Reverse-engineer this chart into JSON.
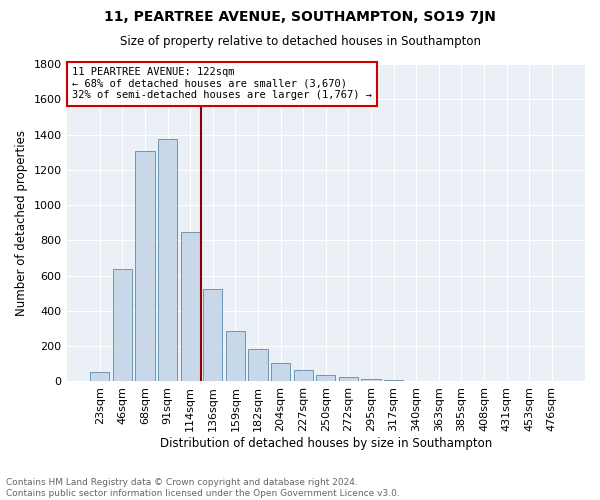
{
  "title": "11, PEARTREE AVENUE, SOUTHAMPTON, SO19 7JN",
  "subtitle": "Size of property relative to detached houses in Southampton",
  "xlabel": "Distribution of detached houses by size in Southampton",
  "ylabel": "Number of detached properties",
  "footer_line1": "Contains HM Land Registry data © Crown copyright and database right 2024.",
  "footer_line2": "Contains public sector information licensed under the Open Government Licence v3.0.",
  "annotation_line1": "11 PEARTREE AVENUE: 122sqm",
  "annotation_line2": "← 68% of detached houses are smaller (3,670)",
  "annotation_line3": "32% of semi-detached houses are larger (1,767) →",
  "categories": [
    "23sqm",
    "46sqm",
    "68sqm",
    "91sqm",
    "114sqm",
    "136sqm",
    "159sqm",
    "182sqm",
    "204sqm",
    "227sqm",
    "250sqm",
    "272sqm",
    "295sqm",
    "317sqm",
    "340sqm",
    "363sqm",
    "385sqm",
    "408sqm",
    "431sqm",
    "453sqm",
    "476sqm"
  ],
  "values": [
    55,
    635,
    1305,
    1375,
    845,
    525,
    285,
    185,
    105,
    65,
    35,
    25,
    15,
    10,
    5,
    3,
    2,
    1,
    1,
    0,
    0
  ],
  "bar_color": "#c8d8e8",
  "bar_edge_color": "#5a8ab0",
  "vline_x": 4.5,
  "vline_color": "#8b0000",
  "annotation_box_color": "#cc0000",
  "ylim": [
    0,
    1800
  ],
  "yticks": [
    0,
    200,
    400,
    600,
    800,
    1000,
    1200,
    1400,
    1600,
    1800
  ],
  "bg_color": "#ffffff",
  "plot_bg_color": "#eaf0f6",
  "grid_color": "#ffffff",
  "title_fontsize": 10,
  "subtitle_fontsize": 8.5,
  "tick_fontsize": 8,
  "xlabel_fontsize": 8.5,
  "ylabel_fontsize": 8.5,
  "annotation_fontsize": 7.5,
  "footer_fontsize": 6.5,
  "footer_color": "#666666"
}
